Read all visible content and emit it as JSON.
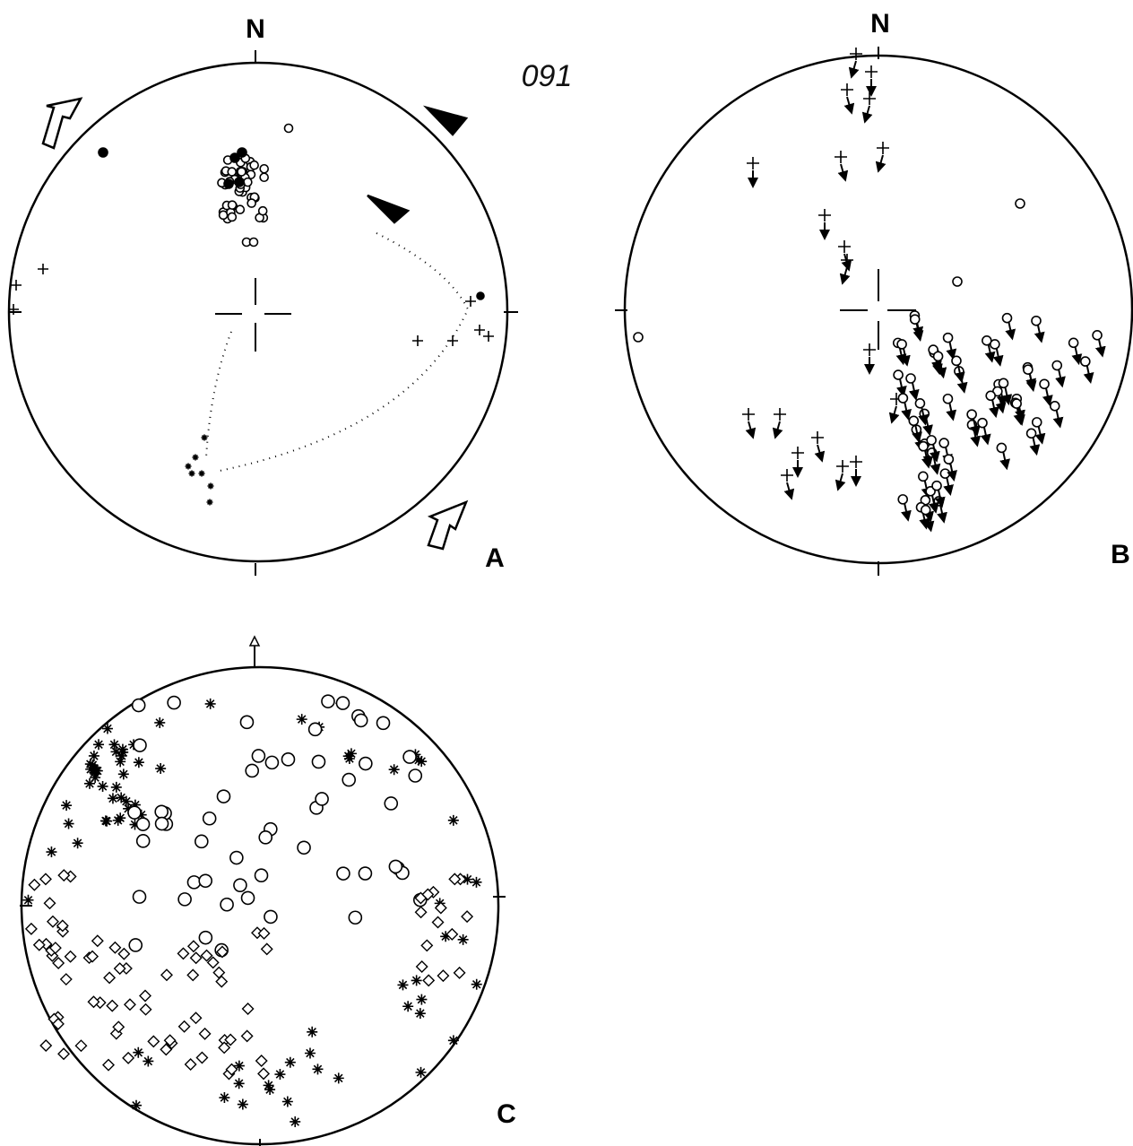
{
  "panels": [
    {
      "north": "N",
      "number": "091",
      "label": "A"
    },
    {
      "north": "N",
      "label": "B"
    },
    {
      "label": "C"
    }
  ]
}
